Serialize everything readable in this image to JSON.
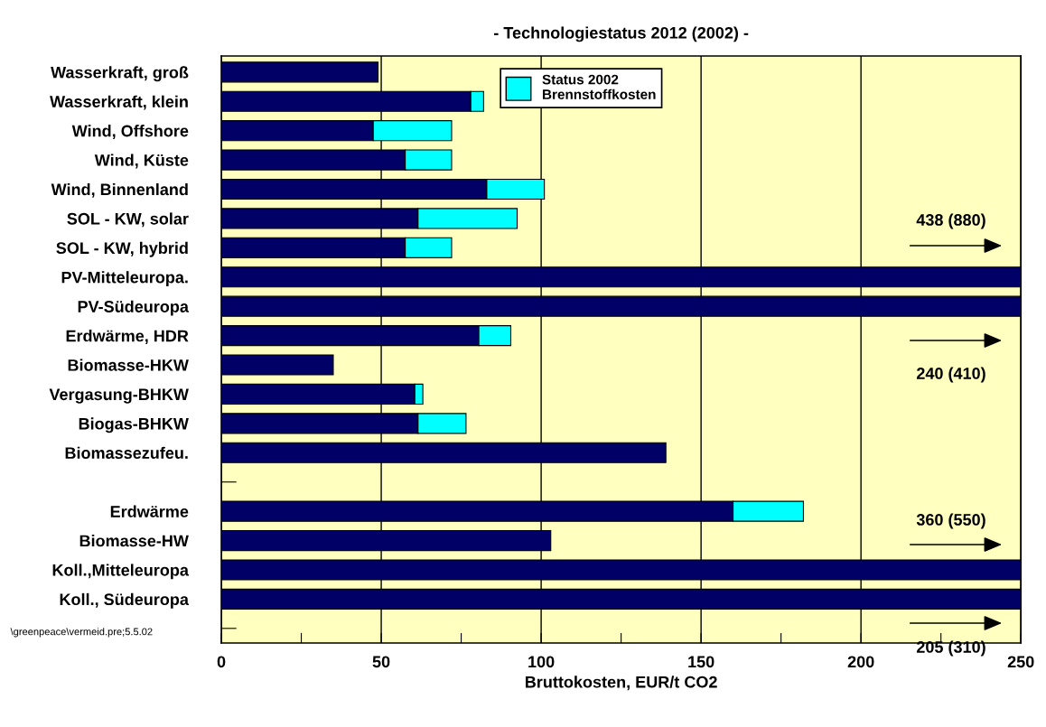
{
  "chart_data": {
    "type": "bar",
    "orientation": "horizontal",
    "stacked": true,
    "title": "- Technologiestatus 2012 (2002) -",
    "xlabel": "Bruttokosten, EUR/t CO2",
    "categories": [
      "Wasserkraft, groß",
      "Wasserkraft, klein",
      "Wind, Offshore",
      "Wind, Küste",
      "Wind, Binnenland",
      "SOL - KW, solar",
      "SOL - KW, hybrid",
      "PV-Mitteleuropa.",
      "PV-Südeuropa",
      "Erdwärme, HDR",
      "Biomasse-HKW",
      "Vergasung-BHKW",
      "Biogas-BHKW",
      "Biomassezufeu.",
      null,
      "Erdwärme",
      "Biomasse-HW",
      "Koll.,Mitteleuropa",
      "Koll., Südeuropa",
      null
    ],
    "series": [
      {
        "color": "#000066",
        "values": [
          49,
          78,
          47.5,
          57.5,
          83,
          61.5,
          57.5,
          250,
          250,
          80.5,
          35,
          60.5,
          61.5,
          139,
          null,
          160,
          103,
          250,
          250,
          null
        ]
      },
      {
        "name": "Status 2002\nBrennstoffkosten",
        "color": "#00ffff",
        "values": [
          null,
          4,
          24.5,
          14.5,
          18,
          31,
          14.5,
          null,
          null,
          10,
          null,
          2.5,
          15,
          null,
          null,
          22,
          null,
          null,
          null,
          null
        ]
      }
    ],
    "xlim": [
      0,
      250
    ],
    "xticks": [
      0,
      {
        "value": 25,
        "label": null
      },
      50,
      {
        "value": 75,
        "label": null
      },
      100,
      {
        "value": 125,
        "label": null
      },
      150,
      {
        "value": 175,
        "label": null
      },
      200,
      {
        "value": 225,
        "label": null
      },
      250
    ],
    "grid": "x",
    "legend": "top",
    "annotations": [
      "438 (880)",
      "240 (410)",
      "360 (550)",
      "205 (310)",
      "\\greenpeace\\vermeid.pre;5.5.02"
    ]
  }
}
